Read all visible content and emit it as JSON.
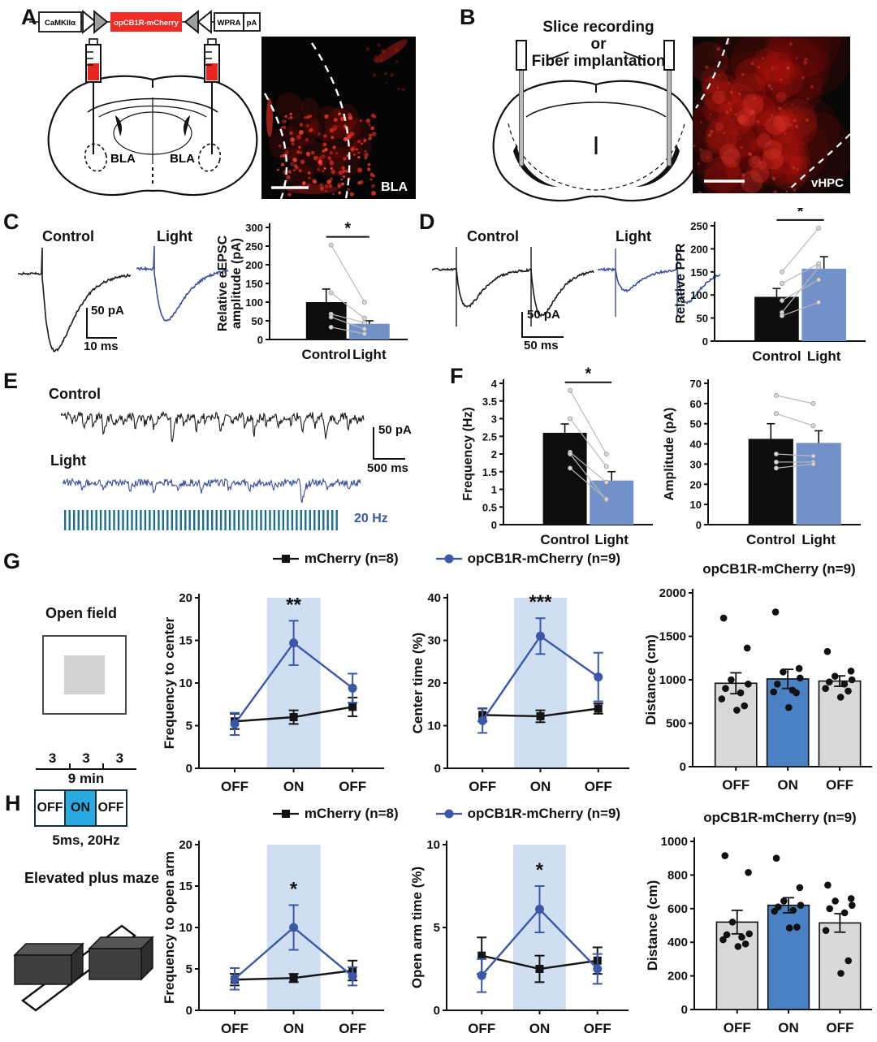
{
  "panels": {
    "A": {
      "letter": "A",
      "construct": {
        "promoter": "CaMKIIα",
        "gene": "opCB1R-mCherry",
        "el2": "WPRA",
        "el3": "pA"
      },
      "bla_left": "BLA",
      "bla_right": "BLA",
      "image_label": "BLA"
    },
    "B": {
      "letter": "B",
      "title_lines": [
        "Slice recording",
        "or",
        "Fiber implantation"
      ],
      "image_label": "vHPC"
    },
    "C": {
      "letter": "C",
      "trace1_label": "Control",
      "trace2_label": "Light",
      "scale_v": "50 pA",
      "scale_h": "10 ms"
    },
    "D": {
      "letter": "D",
      "trace1_label": "Control",
      "trace2_label": "Light",
      "scale_v": "50 pA",
      "scale_h": "50 ms"
    },
    "E": {
      "letter": "E",
      "trace1_label": "Control",
      "trace2_label": "Light",
      "scale_v": "50 pA",
      "scale_h": "500 ms",
      "stim_label": "20 Hz"
    },
    "F": {
      "letter": "F"
    },
    "G": {
      "letter": "G",
      "apparatus_label": "Open field"
    },
    "H": {
      "letter": "H",
      "apparatus_label": "Elevated plus maze",
      "timeline": {
        "seg1": "3",
        "seg2": "3",
        "seg3": "3",
        "total": "9 min",
        "phase1": "OFF",
        "phase2": "ON",
        "phase3": "OFF",
        "stim": "5ms, 20Hz"
      }
    }
  },
  "legend": {
    "items": [
      {
        "label": "mCherry (n=8)",
        "color": "#141414",
        "marker": "square"
      },
      {
        "label": "opCB1R-mCherry (n=9)",
        "color": "#3a57a8",
        "marker": "circle"
      }
    ]
  },
  "colors": {
    "bar_black": "#0d0d0d",
    "bar_blue": "#7191c8",
    "on_bar_blue": "#4a80c4",
    "line_blue": "#3a57a8",
    "line_black": "#141414",
    "trace_blue": "#3b4fa0",
    "trace_black": "#1a1a1a",
    "band_blue": "#cfdff1",
    "stim_teal": "#1b6e8f",
    "on_box_cyan": "#29abe2",
    "construct_red": "#ee2b24",
    "fluor_red": "#d62018",
    "gray_bar": "#d9d9d9"
  },
  "chart_data": [
    {
      "id": "eepsc",
      "type": "bar",
      "ylabel": "Relative eEPSC amplitude (pA)",
      "ylabel_lines": [
        "Relative eEPSC",
        "amplitude (pA)"
      ],
      "categories": [
        "Control",
        "Light"
      ],
      "values": [
        100,
        42
      ],
      "errors": [
        35,
        8
      ],
      "ylim": [
        0,
        300
      ],
      "ytick": 50,
      "sig": "*",
      "bar_colors": [
        "#0d0d0d",
        "#7191c8"
      ],
      "pairs": [
        [
          253,
          100
        ],
        [
          125,
          57
        ],
        [
          68,
          45
        ],
        [
          60,
          28
        ],
        [
          33,
          15
        ]
      ]
    },
    {
      "id": "ppr",
      "type": "bar",
      "ylabel": "Relative PPR",
      "ylabel_lines": [
        "Relative PPR"
      ],
      "categories": [
        "Control",
        "Light"
      ],
      "values": [
        96,
        157
      ],
      "errors": [
        18,
        26
      ],
      "ylim": [
        0,
        250
      ],
      "ytick": 50,
      "sig": "*",
      "bar_colors": [
        "#0d0d0d",
        "#7191c8"
      ],
      "pairs": [
        [
          150,
          245
        ],
        [
          125,
          168
        ],
        [
          88,
          133
        ],
        [
          62,
          160
        ],
        [
          55,
          84
        ]
      ]
    },
    {
      "id": "sepsc-freq",
      "type": "bar",
      "ylabel": "Frequency (Hz)",
      "ylabel_lines": [
        "Frequency (Hz)"
      ],
      "categories": [
        "Control",
        "Light"
      ],
      "values": [
        2.6,
        1.25
      ],
      "errors": [
        0.25,
        0.25
      ],
      "ylim": [
        0,
        4
      ],
      "ytick": 0.5,
      "sig": "*",
      "bar_colors": [
        "#0d0d0d",
        "#7191c8"
      ],
      "pairs": [
        [
          3.8,
          2.0
        ],
        [
          3.0,
          1.65
        ],
        [
          2.05,
          1.2
        ],
        [
          2.0,
          0.7
        ],
        [
          1.6,
          0.72
        ]
      ]
    },
    {
      "id": "sepsc-amp",
      "type": "bar",
      "ylabel": "Amplitude (pA)",
      "ylabel_lines": [
        "Amplitude (pA)"
      ],
      "categories": [
        "Control",
        "Light"
      ],
      "values": [
        42.5,
        40.5
      ],
      "errors": [
        7.5,
        6
      ],
      "ylim": [
        0,
        70
      ],
      "ytick": 10,
      "sig": null,
      "bar_colors": [
        "#0d0d0d",
        "#7191c8"
      ],
      "pairs": [
        [
          64,
          60
        ],
        [
          55,
          49
        ],
        [
          35,
          34
        ],
        [
          31,
          31
        ],
        [
          28,
          30
        ]
      ]
    },
    {
      "id": "of-frequency",
      "type": "line",
      "ylabel": "Frequency to center",
      "categories": [
        "OFF",
        "ON",
        "OFF"
      ],
      "ylim": [
        0,
        20
      ],
      "ytick": 5,
      "sig": "**",
      "band_index": 1,
      "series": [
        {
          "name": "mCherry (n=8)",
          "marker": "square",
          "color": "#141414",
          "values": [
            5.5,
            6.0,
            7.2
          ],
          "errors": [
            0.9,
            0.8,
            1.1
          ]
        },
        {
          "name": "opCB1R-mCherry (n=9)",
          "marker": "circle",
          "color": "#3a57a8",
          "values": [
            5.2,
            14.7,
            9.4
          ],
          "errors": [
            1.3,
            2.6,
            1.7
          ]
        }
      ]
    },
    {
      "id": "of-centertime",
      "type": "line",
      "ylabel": "Center time (%)",
      "categories": [
        "OFF",
        "ON",
        "OFF"
      ],
      "ylim": [
        0,
        40
      ],
      "ytick": 10,
      "sig": "***",
      "band_index": 1,
      "series": [
        {
          "name": "mCherry (n=8)",
          "marker": "square",
          "color": "#141414",
          "values": [
            12.5,
            12.2,
            14.0
          ],
          "errors": [
            1.5,
            1.4,
            1.2
          ]
        },
        {
          "name": "opCB1R-mCherry (n=9)",
          "marker": "circle",
          "color": "#3a57a8",
          "values": [
            11.2,
            31.0,
            21.4
          ],
          "errors": [
            2.9,
            4.2,
            5.7
          ]
        }
      ]
    },
    {
      "id": "of-distance",
      "type": "dotbar",
      "title": "opCB1R-mCherry (n=9)",
      "ylabel": "Distance (cm)",
      "categories": [
        "OFF",
        "ON",
        "OFF"
      ],
      "values": [
        960,
        1010,
        985
      ],
      "errors": [
        120,
        110,
        60
      ],
      "ylim": [
        0,
        2000
      ],
      "ytick": 500,
      "bar_colors": [
        "#d9d9d9",
        "#4a80c4",
        "#d9d9d9"
      ],
      "dots": [
        [
          1710,
          1365,
          1000,
          950,
          900,
          850,
          780,
          700,
          650
        ],
        [
          1780,
          1130,
          1090,
          1020,
          950,
          880,
          860,
          850,
          680
        ],
        [
          1325,
          1100,
          1040,
          1000,
          975,
          950,
          900,
          870,
          800
        ]
      ]
    },
    {
      "id": "epm-frequency",
      "type": "line",
      "ylabel": "Frequency to open arm",
      "categories": [
        "OFF",
        "ON",
        "OFF"
      ],
      "ylim": [
        0,
        20
      ],
      "ytick": 5,
      "sig": "*",
      "band_index": 1,
      "series": [
        {
          "name": "mCherry (n=8)",
          "marker": "square",
          "color": "#141414",
          "values": [
            3.7,
            3.9,
            4.8
          ],
          "errors": [
            0.7,
            0.5,
            1.2
          ]
        },
        {
          "name": "opCB1R-mCherry (n=9)",
          "marker": "circle",
          "color": "#3a57a8",
          "values": [
            3.8,
            10.0,
            4.1
          ],
          "errors": [
            1.3,
            2.7,
            1.1
          ]
        }
      ]
    },
    {
      "id": "epm-opentime",
      "type": "line",
      "ylabel": "Open arm time (%)",
      "categories": [
        "OFF",
        "ON",
        "OFF"
      ],
      "ylim": [
        0,
        10
      ],
      "ytick": 5,
      "sig": "*",
      "band_index": 1,
      "series": [
        {
          "name": "mCherry (n=8)",
          "marker": "square",
          "color": "#141414",
          "values": [
            3.3,
            2.5,
            3.0
          ],
          "errors": [
            1.1,
            0.8,
            0.8
          ]
        },
        {
          "name": "opCB1R-mCherry (n=9)",
          "marker": "circle",
          "color": "#3a57a8",
          "values": [
            2.1,
            6.1,
            2.5
          ],
          "errors": [
            1.0,
            1.4,
            0.9
          ]
        }
      ]
    },
    {
      "id": "epm-distance",
      "type": "dotbar",
      "title": "opCB1R-mCherry (n=9)",
      "ylabel": "Distance (cm)",
      "categories": [
        "OFF",
        "ON",
        "OFF"
      ],
      "values": [
        520,
        620,
        515
      ],
      "errors": [
        70,
        45,
        55
      ],
      "ylim": [
        0,
        1000
      ],
      "ytick": 200,
      "bar_colors": [
        "#d9d9d9",
        "#4a80c4",
        "#d9d9d9"
      ],
      "dots": [
        [
          915,
          815,
          520,
          450,
          445,
          430,
          415,
          390,
          375
        ],
        [
          900,
          725,
          645,
          620,
          610,
          590,
          585,
          490,
          485
        ],
        [
          740,
          660,
          645,
          620,
          600,
          575,
          470,
          290,
          215
        ]
      ]
    }
  ]
}
